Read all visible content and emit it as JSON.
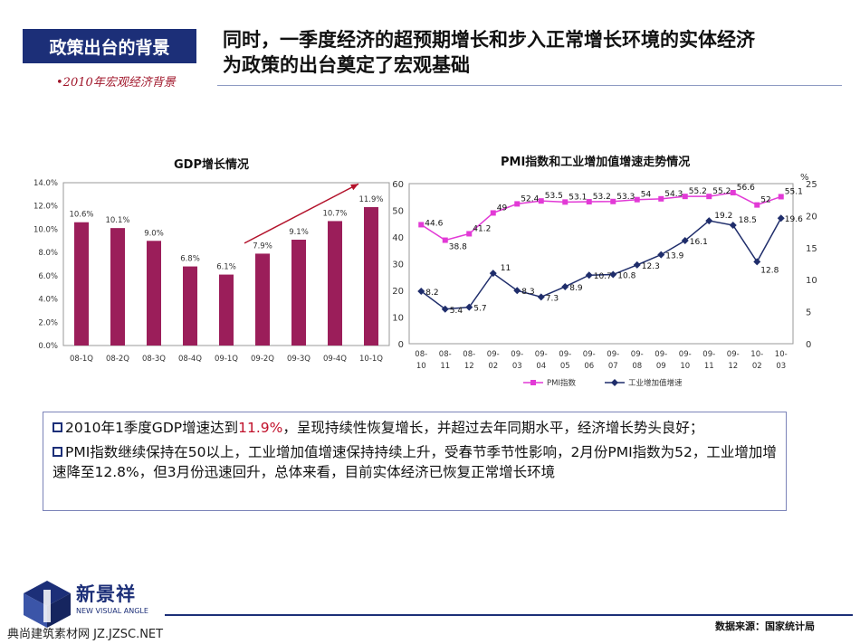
{
  "header": {
    "tag": "政策出台的背景",
    "subtag": "•2010年宏观经济背景",
    "headline_line1": "同时，一季度经济的超预期增长和步入正常增长环境的实体经济",
    "headline_line2": "为政策的出台奠定了宏观基础"
  },
  "colors": {
    "navy": "#1c2f78",
    "bar": "#9b1e5a",
    "pmi": "#e23ad6",
    "ip": "#1f2d6b",
    "highlight": "#c0102a"
  },
  "chart_data": [
    {
      "type": "bar",
      "title": "GDP增长情况",
      "categories": [
        "08-1Q",
        "08-2Q",
        "08-3Q",
        "08-4Q",
        "09-1Q",
        "09-2Q",
        "09-3Q",
        "09-4Q",
        "10-1Q"
      ],
      "values": [
        10.6,
        10.1,
        9.0,
        6.8,
        6.1,
        7.9,
        9.1,
        10.7,
        11.9
      ],
      "value_labels": [
        "10.6%",
        "10.1%",
        "9.0%",
        "6.8%",
        "6.1%",
        "7.9%",
        "9.1%",
        "10.7%",
        "11.9%"
      ],
      "ylim": [
        0,
        14
      ],
      "yticks": [
        "0.0%",
        "2.0%",
        "4.0%",
        "6.0%",
        "8.0%",
        "10.0%",
        "12.0%",
        "14.0%"
      ],
      "annotation": "upward arrow"
    },
    {
      "type": "line",
      "title": "PMI指数和工业增加值增速走势情况",
      "categories": [
        [
          "08-",
          "10"
        ],
        [
          "08-",
          "11"
        ],
        [
          "08-",
          "12"
        ],
        [
          "09-",
          "02"
        ],
        [
          "09-",
          "03"
        ],
        [
          "09-",
          "04"
        ],
        [
          "09-",
          "05"
        ],
        [
          "09-",
          "06"
        ],
        [
          "09-",
          "07"
        ],
        [
          "09-",
          "08"
        ],
        [
          "09-",
          "09"
        ],
        [
          "09-",
          "10"
        ],
        [
          "09-",
          "11"
        ],
        [
          "09-",
          "12"
        ],
        [
          "10-",
          "02"
        ],
        [
          "10-",
          "03"
        ]
      ],
      "series": [
        {
          "name": "PMI指数",
          "axis": "left",
          "values": [
            44.6,
            38.8,
            41.2,
            49,
            52.4,
            53.5,
            53.1,
            53.2,
            53.3,
            54,
            54.3,
            55.2,
            55.2,
            56.6,
            52,
            55.1
          ]
        },
        {
          "name": "工业增加值增速",
          "axis": "right",
          "values": [
            8.2,
            5.4,
            5.7,
            11,
            8.3,
            7.3,
            8.9,
            10.7,
            10.8,
            12.3,
            13.9,
            16.1,
            19.2,
            18.5,
            12.8,
            19.6
          ]
        }
      ],
      "ylim_left": [
        0,
        60
      ],
      "yticks_left": [
        "0",
        "10",
        "20",
        "30",
        "40",
        "50",
        "60"
      ],
      "ylim_right": [
        0,
        25
      ],
      "yticks_right": [
        "0",
        "5",
        "10",
        "15",
        "20",
        "25"
      ],
      "right_axis_unit": "%",
      "legend_position": "bottom"
    }
  ],
  "notes": [
    {
      "prefix": "2010年1季度GDP增速达到",
      "highlight": "11.9%",
      "suffix": "，呈现持续性恢复增长，并超过去年同期水平，经济增长势头良好；"
    },
    {
      "prefix": "PMI指数继续保持在50以上，工业增加值增速保持持续上升，受春节季节性影响，2月份PMI指数为52，工业增加增速降至12.8%，但3月份迅速回升，总体来看，目前实体经济已恢复正常增长环境",
      "highlight": "",
      "suffix": ""
    }
  ],
  "footer": {
    "logo_text": "新景祥",
    "logo_sub": "NEW VISUAL ANGLE",
    "watermark": "典尚建筑素材网 JZ.JZSC.NET",
    "source": "数据来源：国家统计局"
  }
}
